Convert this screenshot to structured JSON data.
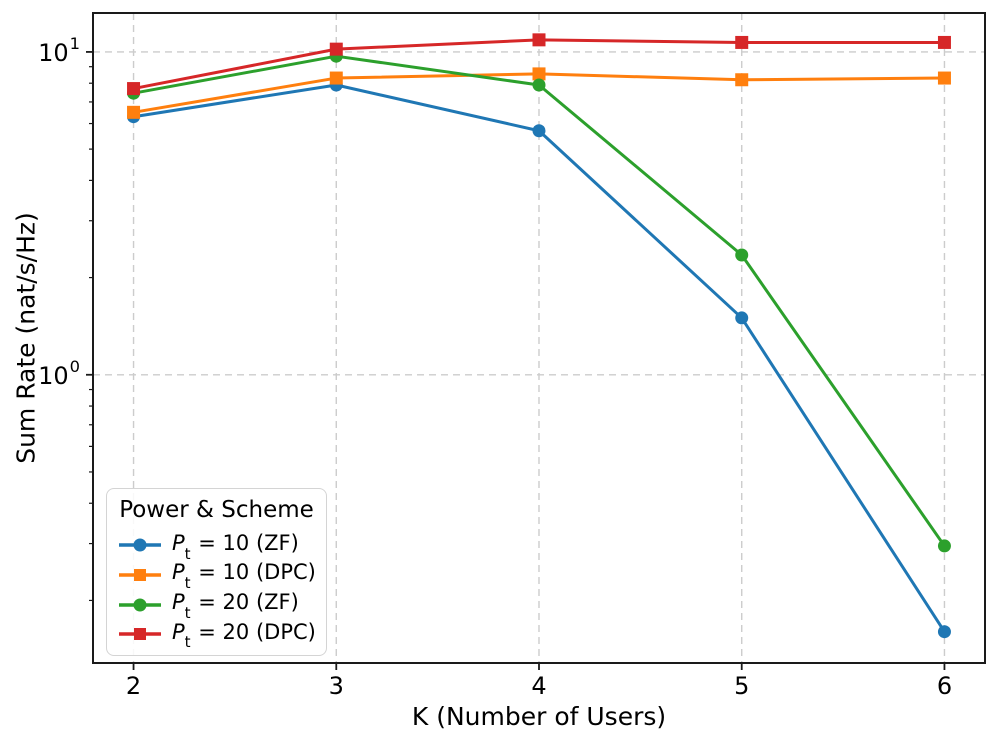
{
  "chart_data": {
    "type": "line",
    "title": "",
    "xlabel": "K (Number of Users)",
    "ylabel": "Sum Rate (nat/s/Hz)",
    "x": [
      2,
      3,
      4,
      5,
      6
    ],
    "x_tick_labels": [
      "2",
      "3",
      "4",
      "5",
      "6"
    ],
    "y_scale": "log",
    "xlim": [
      1.8,
      6.2
    ],
    "ylim": [
      0.128,
      13.2
    ],
    "y_major_ticks": [
      {
        "value": 1,
        "base": "10",
        "exp": "0"
      },
      {
        "value": 10,
        "base": "10",
        "exp": "1"
      }
    ],
    "grid": {
      "on": true,
      "style": "dashed",
      "color": "#cccccc"
    },
    "legend": {
      "title": "Power & Scheme",
      "position": "lower-left"
    },
    "series": [
      {
        "name": "Pt = 10 (ZF)",
        "legend_label": {
          "var": "P",
          "sub": "t",
          "rest": " = 10 (ZF)"
        },
        "color": "#1f77b4",
        "marker": "circle",
        "values": [
          6.3,
          7.9,
          5.7,
          1.5,
          0.16
        ]
      },
      {
        "name": "Pt = 10 (DPC)",
        "legend_label": {
          "var": "P",
          "sub": "t",
          "rest": " = 10 (DPC)"
        },
        "color": "#ff7f0e",
        "marker": "square",
        "values": [
          6.5,
          8.3,
          8.55,
          8.2,
          8.3
        ]
      },
      {
        "name": "Pt = 20 (ZF)",
        "legend_label": {
          "var": "P",
          "sub": "t",
          "rest": " = 20 (ZF)"
        },
        "color": "#2ca02c",
        "marker": "circle",
        "values": [
          7.45,
          9.7,
          7.9,
          2.35,
          0.295
        ]
      },
      {
        "name": "Pt = 20 (DPC)",
        "legend_label": {
          "var": "P",
          "sub": "t",
          "rest": " = 20 (DPC)"
        },
        "color": "#d62728",
        "marker": "square",
        "values": [
          7.7,
          10.2,
          10.9,
          10.7,
          10.7
        ]
      }
    ],
    "axis_color": "#1a1a1a",
    "background": "#ffffff"
  }
}
